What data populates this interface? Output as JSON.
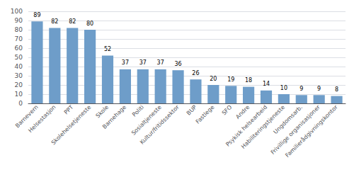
{
  "chart_data": {
    "type": "bar",
    "categories": [
      "Barnevern",
      "Helsestasjon",
      "PPT",
      "Skolehelsetjeneste",
      "Skole",
      "Barnehage",
      "Politi",
      "Sosialtjeneste",
      "Kultur/fritidssektor",
      "BUP",
      "Fastlege",
      "SFO",
      "Andre",
      "Psykisk helsearbeid",
      "Habiliteringstjeneste",
      "Ungdomsarb.",
      "Frivillige organisasjoner",
      "Familierådgivningskontor"
    ],
    "values": [
      89,
      82,
      82,
      80,
      52,
      37,
      37,
      37,
      36,
      26,
      20,
      19,
      18,
      14,
      10,
      9,
      9,
      8
    ],
    "color": "#6e9dc9",
    "ylim": [
      0,
      100
    ],
    "yticks": [
      0,
      10,
      20,
      30,
      40,
      50,
      60,
      70,
      80,
      90,
      100
    ],
    "grid": true,
    "data_labels": true
  }
}
